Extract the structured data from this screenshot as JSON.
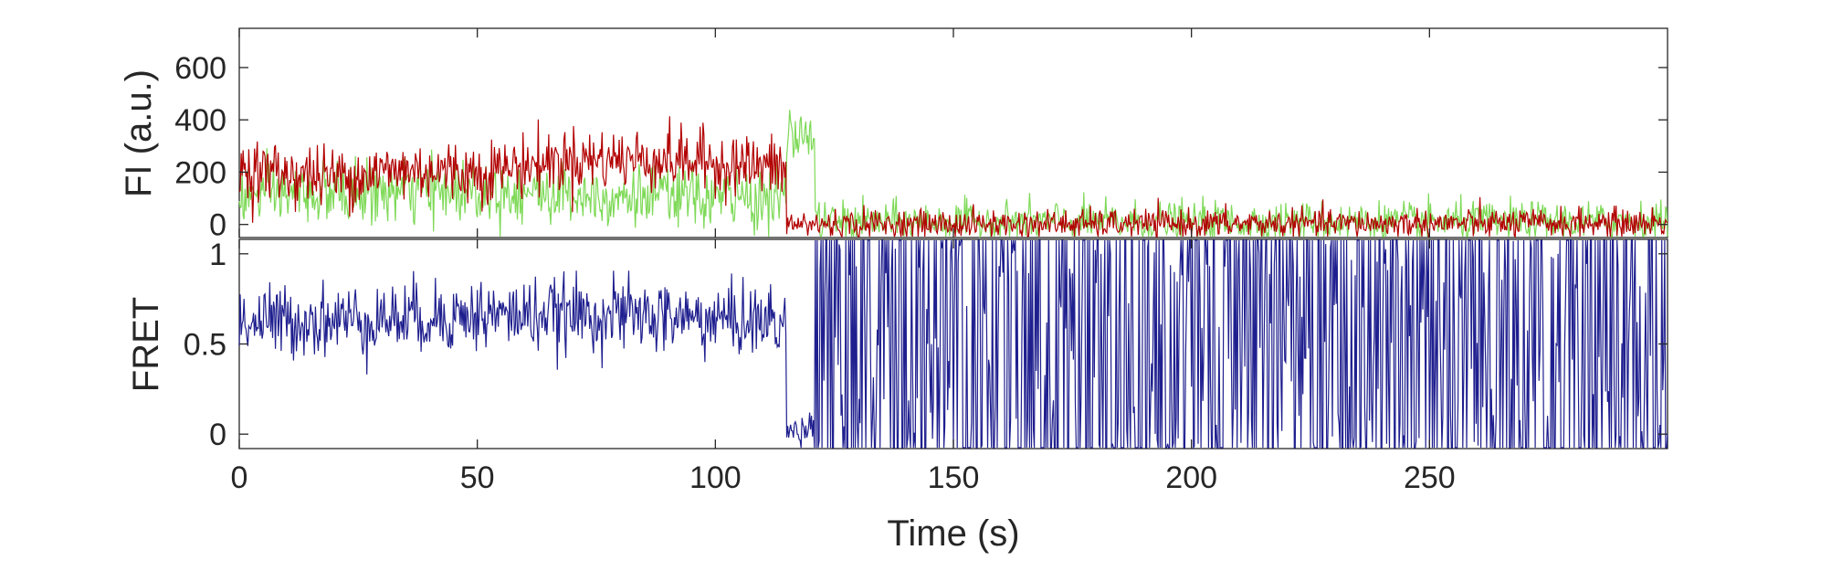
{
  "chart_data": [
    {
      "type": "line",
      "panel": "top",
      "xlabel": "",
      "ylabel": "FI (a.u.)",
      "xlim": [
        0,
        300
      ],
      "ylim": [
        -50,
        750
      ],
      "yticks": [
        0,
        200,
        400,
        600
      ],
      "xticks": [
        0,
        50,
        100,
        150,
        200,
        250
      ],
      "x_tick_labels_visible": false,
      "grid": false,
      "legend": "none",
      "series": [
        {
          "color": "#7ed957",
          "segments": [
            {
              "x_start": 0,
              "x_end": 115,
              "mean": [
                [
                  0,
                  110
                ],
                [
                  20,
                  120
                ],
                [
                  50,
                  130
                ],
                [
                  80,
                  110
                ],
                [
                  100,
                  100
                ],
                [
                  115,
                  100
                ]
              ],
              "noise_sd": 60
            },
            {
              "x_start": 115,
              "x_end": 121,
              "mean": [
                [
                  115,
                  340
                ],
                [
                  121,
                  340
                ]
              ],
              "noise_sd": 50
            },
            {
              "x_start": 121,
              "x_end": 300,
              "mean": [
                [
                  121,
                  10
                ],
                [
                  300,
                  10
                ]
              ],
              "noise_sd": 38
            }
          ]
        },
        {
          "color": "#b20000",
          "segments": [
            {
              "x_start": 0,
              "x_end": 115,
              "mean": [
                [
                  0,
                  210
                ],
                [
                  20,
                  180
                ],
                [
                  35,
                  210
                ],
                [
                  50,
                  200
                ],
                [
                  70,
                  250
                ],
                [
                  90,
                  250
                ],
                [
                  105,
                  230
                ],
                [
                  115,
                  210
                ]
              ],
              "noise_sd": 60
            },
            {
              "x_start": 115,
              "x_end": 300,
              "mean": [
                [
                  115,
                  0
                ],
                [
                  300,
                  5
                ]
              ],
              "noise_sd": 28
            }
          ]
        }
      ]
    },
    {
      "type": "line",
      "panel": "bottom",
      "xlabel": "Time (s)",
      "ylabel": "FRET",
      "xlim": [
        0,
        300
      ],
      "ylim": [
        -0.08,
        1.08
      ],
      "yticks": [
        0,
        0.5,
        1
      ],
      "ytick_labels": [
        "0",
        "0.5",
        "1"
      ],
      "xticks": [
        0,
        50,
        100,
        150,
        200,
        250
      ],
      "xtick_labels": [
        "0",
        "50",
        "100",
        "150",
        "200",
        "250"
      ],
      "grid": false,
      "legend": "none",
      "series": [
        {
          "color": "#1f1f8f",
          "segments": [
            {
              "x_start": 0,
              "x_end": 115,
              "mean": [
                [
                  0,
                  0.62
                ],
                [
                  30,
                  0.64
                ],
                [
                  50,
                  0.66
                ],
                [
                  80,
                  0.66
                ],
                [
                  115,
                  0.62
                ]
              ],
              "noise_sd": 0.1
            },
            {
              "x_start": 115,
              "x_end": 121,
              "mean": [
                [
                  115,
                  0.0
                ],
                [
                  121,
                  0.05
                ]
              ],
              "noise_sd": 0.05
            },
            {
              "x_start": 121,
              "x_end": 300,
              "behavior": "saturating noise spanning full axis (0 to 1)"
            }
          ]
        }
      ]
    }
  ]
}
